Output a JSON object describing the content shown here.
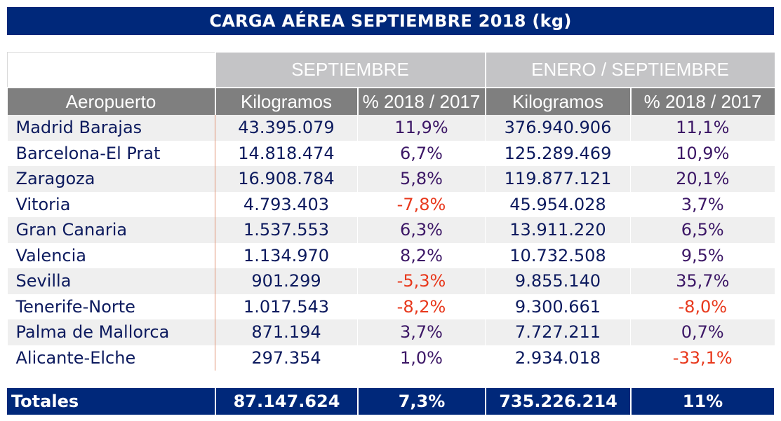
{
  "title": "CARGA AÉREA SEPTIEMBRE 2018 (kg)",
  "groups": [
    "SEPTIEMBRE",
    "ENERO / SEPTIEMBRE"
  ],
  "headers": [
    "Aeropuerto",
    "Kilogramos",
    "% 2018 / 2017",
    "Kilogramos",
    "% 2018 / 2017"
  ],
  "rows": [
    {
      "airport": "Madrid Barajas",
      "sep_kg": "43.395.079",
      "sep_pct": "11,9%",
      "ytd_kg": "376.940.906",
      "ytd_pct": "11,1%"
    },
    {
      "airport": "Barcelona-El Prat",
      "sep_kg": "14.818.474",
      "sep_pct": "6,7%",
      "ytd_kg": "125.289.469",
      "ytd_pct": "10,9%"
    },
    {
      "airport": "Zaragoza",
      "sep_kg": "16.908.784",
      "sep_pct": "5,8%",
      "ytd_kg": "119.877.121",
      "ytd_pct": "20,1%"
    },
    {
      "airport": "Vitoria",
      "sep_kg": "4.793.403",
      "sep_pct": "-7,8%",
      "ytd_kg": "45.954.028",
      "ytd_pct": "3,7%"
    },
    {
      "airport": "Gran Canaria",
      "sep_kg": "1.537.553",
      "sep_pct": "6,3%",
      "ytd_kg": "13.911.220",
      "ytd_pct": "6,5%"
    },
    {
      "airport": "Valencia",
      "sep_kg": "1.134.970",
      "sep_pct": "8,2%",
      "ytd_kg": "10.732.508",
      "ytd_pct": "9,5%"
    },
    {
      "airport": "Sevilla",
      "sep_kg": "901.299",
      "sep_pct": "-5,3%",
      "ytd_kg": "9.855.140",
      "ytd_pct": "35,7%"
    },
    {
      "airport": "Tenerife-Norte",
      "sep_kg": "1.017.543",
      "sep_pct": "-8,2%",
      "ytd_kg": "9.300.661",
      "ytd_pct": "-8,0%"
    },
    {
      "airport": "Palma de Mallorca",
      "sep_kg": "871.194",
      "sep_pct": "3,7%",
      "ytd_kg": "7.727.211",
      "ytd_pct": "0,7%"
    },
    {
      "airport": "Alicante-Elche",
      "sep_kg": "297.354",
      "sep_pct": "1,0%",
      "ytd_kg": "2.934.018",
      "ytd_pct": "-33,1%"
    }
  ],
  "totals": {
    "label": "Totales",
    "sep_kg": "87.147.624",
    "sep_pct": "7,3%",
    "ytd_kg": "735.226.214",
    "ytd_pct": "11%"
  },
  "colors": {
    "header_blue": "#00287a",
    "group_gray": "#c4c4c6",
    "col_header_gray": "#7f7f7f",
    "negative": "#e8381c"
  }
}
